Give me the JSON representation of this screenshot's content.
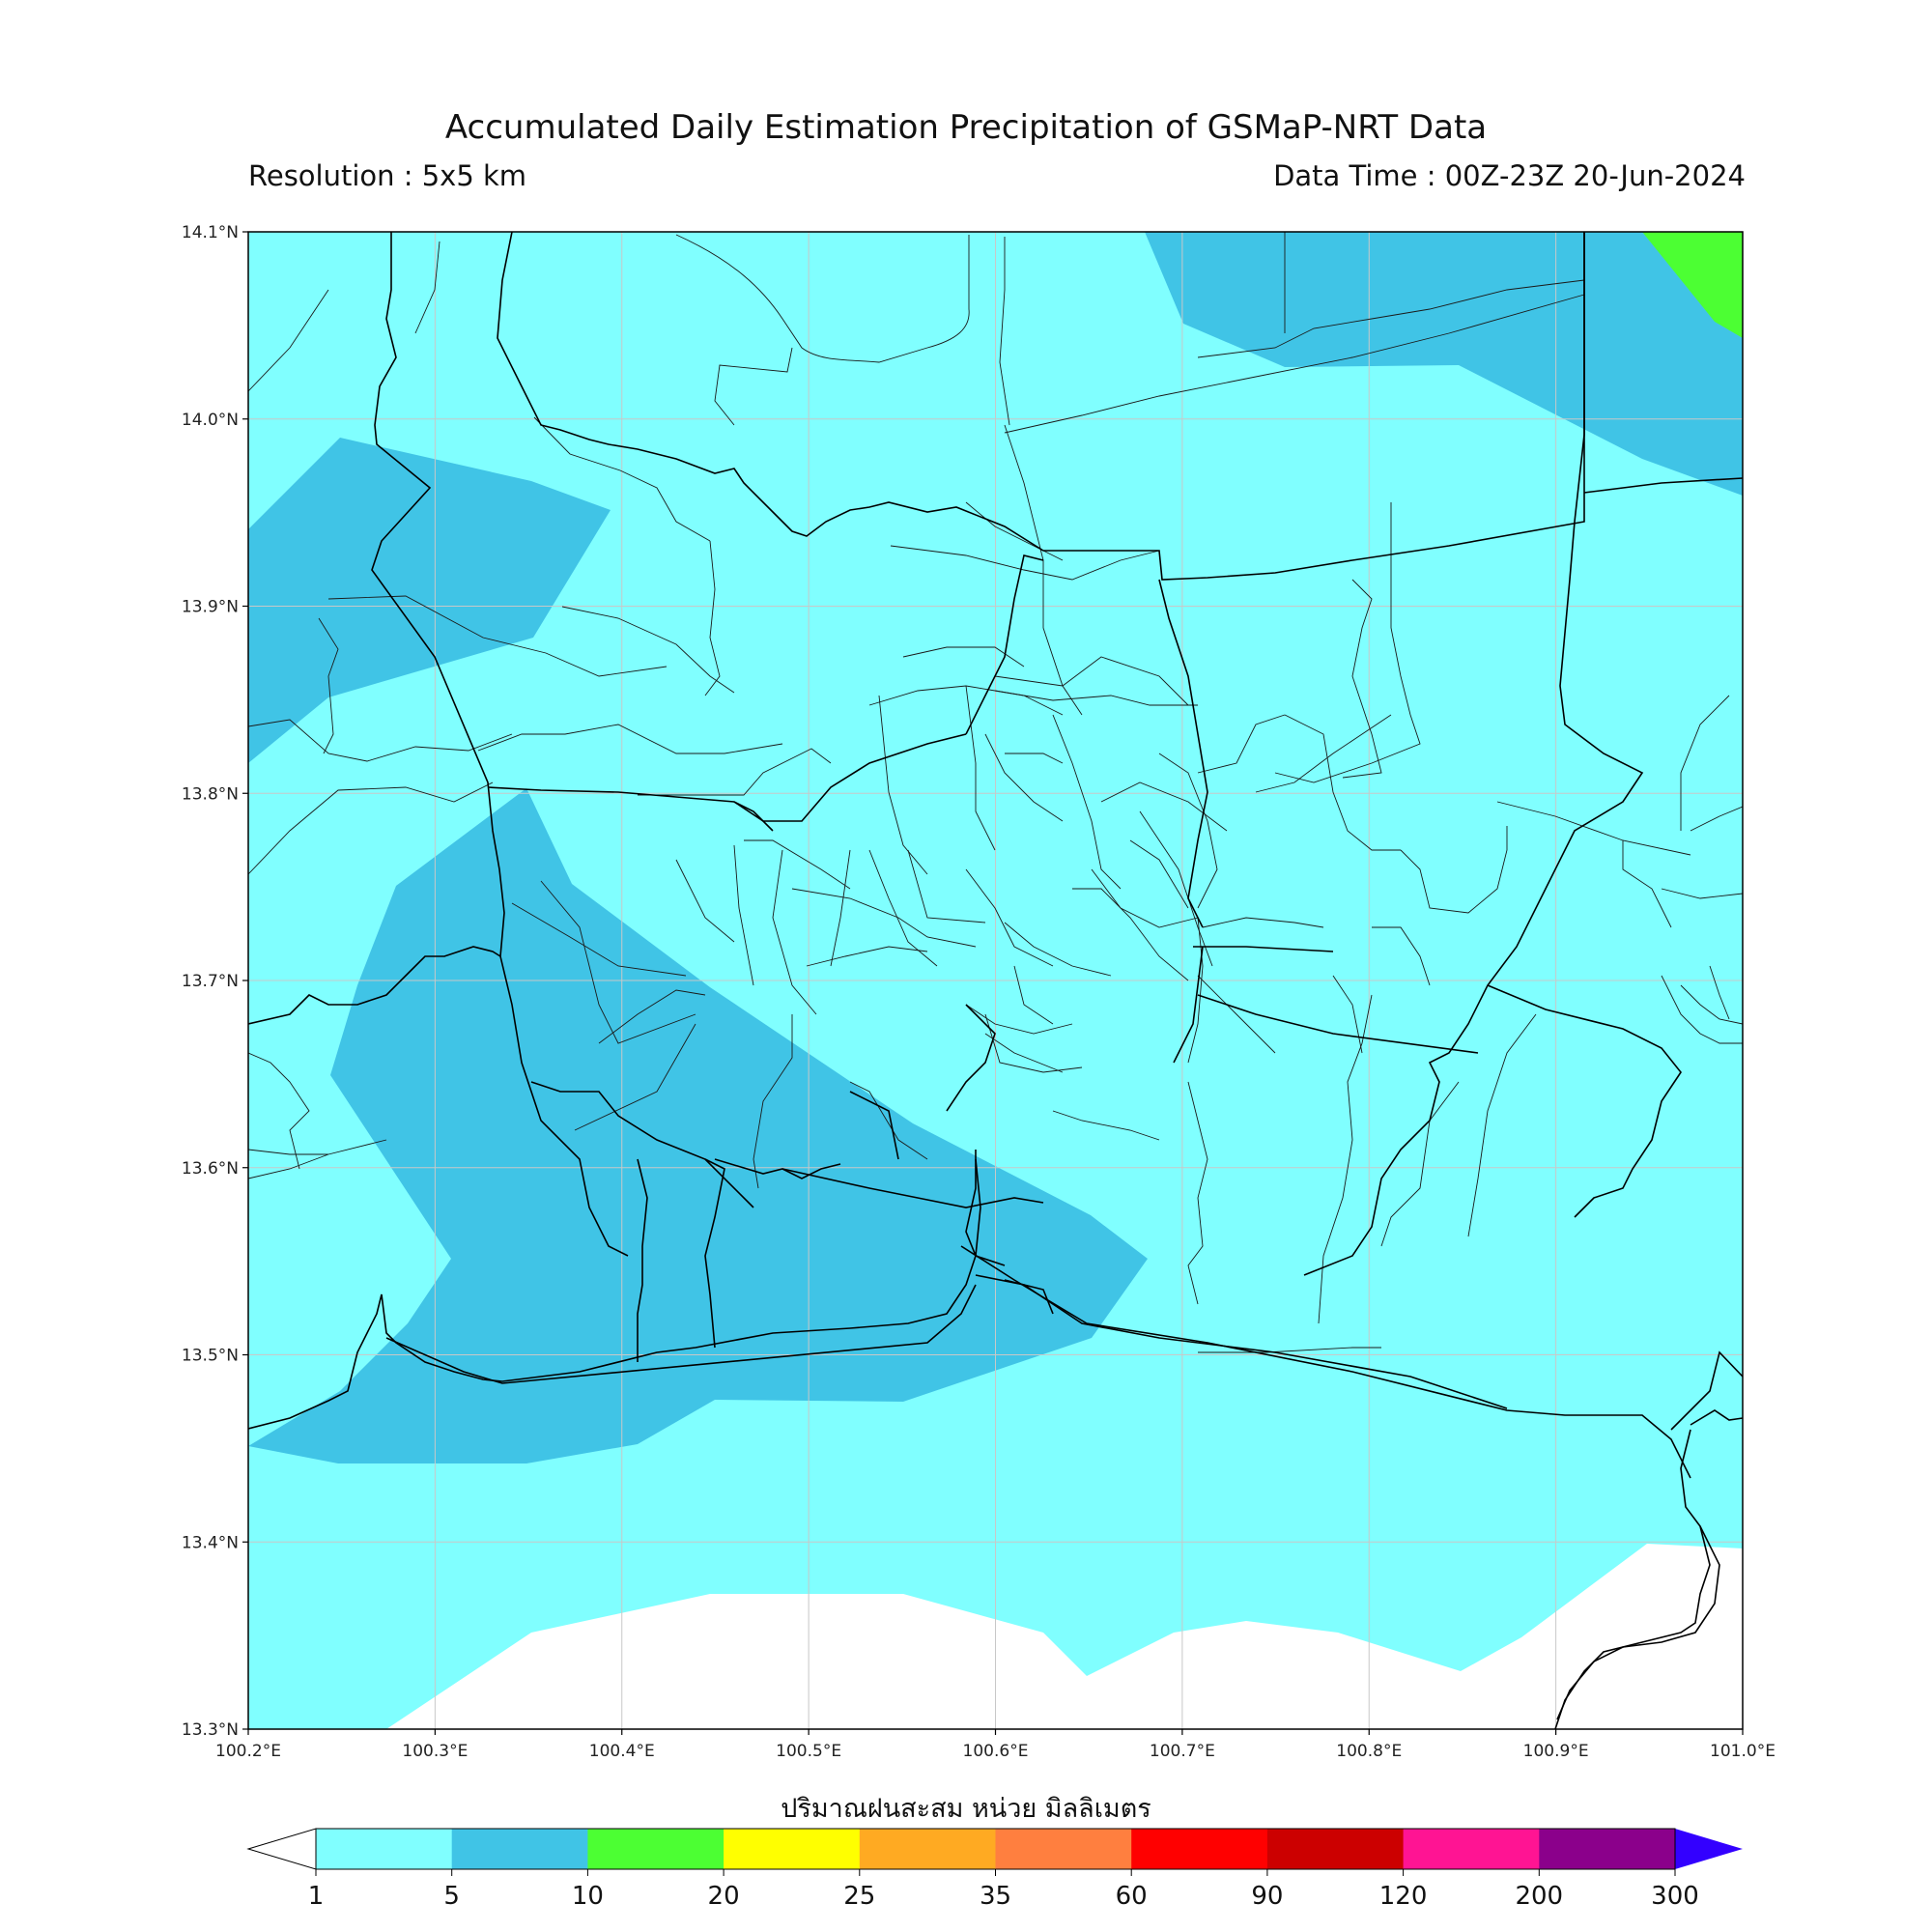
{
  "header": {
    "title": "Accumulated Daily Estimation Precipitation of GSMaP-NRT Data",
    "resolution": "Resolution : 5x5 km",
    "data_time": "Data Time : 00Z-23Z 20-Jun-2024"
  },
  "map": {
    "lon_range": [
      100.2,
      101.0
    ],
    "lat_range": [
      13.3,
      14.1
    ],
    "grid": true,
    "x_ticks": [
      "100.2°E",
      "100.3°E",
      "100.4°E",
      "100.5°E",
      "100.6°E",
      "100.7°E",
      "100.8°E",
      "100.9°E",
      "101.0°E"
    ],
    "y_ticks": [
      "14.1°N",
      "14.0°N",
      "13.9°N",
      "13.8°N",
      "13.7°N",
      "13.6°N",
      "13.5°N",
      "13.4°N",
      "13.3°N"
    ],
    "colors": {
      "class_1_5": "#80ffff",
      "class_5_10": "#40c4e6",
      "class_10_20": "#4cff33",
      "boundary": "#000000",
      "grid": "#c8c8c8"
    }
  },
  "colorbar": {
    "title": "ปริมาณฝนสะสม หน่วย มิลลิเมตร",
    "tick_labels": [
      "1",
      "5",
      "10",
      "20",
      "25",
      "35",
      "60",
      "90",
      "120",
      "200",
      "300"
    ],
    "colors": [
      "#80ffff",
      "#40c4e6",
      "#4cff33",
      "#ffff00",
      "#ffaa22",
      "#ff7f3f",
      "#ff0000",
      "#cc0000",
      "#ff1493",
      "#8b008b"
    ],
    "under_color": "#ffffff",
    "over_color": "#3300ff"
  }
}
